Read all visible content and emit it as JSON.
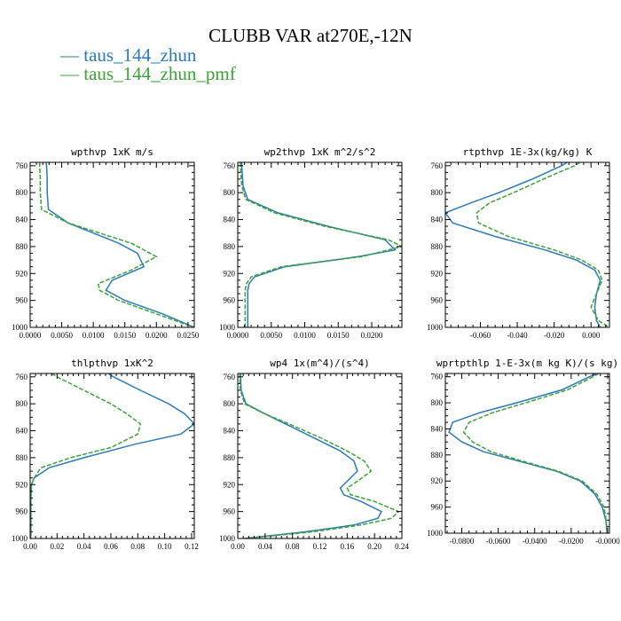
{
  "title": "CLUBB VAR at270E,-12N",
  "legend": [
    {
      "name": "taus_144_zhun",
      "color": "#2a7ab9"
    },
    {
      "name": "taus_144_zhun_pmf",
      "color": "#3aa335"
    }
  ],
  "chart_data": [
    {
      "type": "line",
      "title": "wpthvp  1xK m/s",
      "xlim": [
        0,
        0.026
      ],
      "ylim": [
        1000,
        755
      ],
      "xticks": [
        0,
        0.005,
        0.01,
        0.015,
        0.02,
        0.025
      ],
      "xtick_labels": [
        "0.0000",
        "0.0050",
        "0.0100",
        "0.0150",
        "0.0200",
        "0.0250"
      ],
      "yticks": [
        760,
        800,
        840,
        880,
        920,
        960,
        1000
      ],
      "ytick_labels": [
        "760",
        "800",
        "840",
        "880",
        "920",
        "960",
        "1000"
      ],
      "series": [
        {
          "name": "taus_144_zhun",
          "style": "solid",
          "p": [
            755,
            760,
            780,
            800,
            825,
            845,
            860,
            875,
            890,
            910,
            930,
            945,
            960,
            980,
            1000
          ],
          "x": [
            0.0025,
            0.0026,
            0.0027,
            0.0027,
            0.0029,
            0.006,
            0.01,
            0.014,
            0.017,
            0.018,
            0.013,
            0.012,
            0.015,
            0.021,
            0.026
          ]
        },
        {
          "name": "taus_144_zhun_pmf",
          "style": "dashed",
          "p": [
            755,
            760,
            780,
            800,
            825,
            845,
            860,
            875,
            895,
            915,
            935,
            945,
            960,
            980,
            1000
          ],
          "x": [
            0.0015,
            0.0015,
            0.0016,
            0.0016,
            0.0018,
            0.006,
            0.011,
            0.016,
            0.02,
            0.016,
            0.0108,
            0.011,
            0.014,
            0.02,
            0.026
          ]
        }
      ]
    },
    {
      "type": "line",
      "title": "wp2thvp  1xK m^2/s^2",
      "xlim": [
        0,
        0.0245
      ],
      "ylim": [
        1000,
        755
      ],
      "xticks": [
        0,
        0.005,
        0.01,
        0.015,
        0.02
      ],
      "xtick_labels": [
        "0.0000",
        "0.0050",
        "0.0100",
        "0.0150",
        "0.0200"
      ],
      "yticks": [
        760,
        800,
        840,
        880,
        920,
        960,
        1000
      ],
      "ytick_labels": [
        "760",
        "800",
        "840",
        "880",
        "920",
        "960",
        "1000"
      ],
      "series": [
        {
          "name": "taus_144_zhun",
          "style": "solid",
          "p": [
            755,
            760,
            790,
            810,
            830,
            850,
            870,
            885,
            895,
            910,
            925,
            935,
            945,
            960,
            980,
            1000
          ],
          "x": [
            0.0006,
            0.0006,
            0.0008,
            0.0015,
            0.006,
            0.0135,
            0.022,
            0.0235,
            0.018,
            0.007,
            0.0025,
            0.0017,
            0.0015,
            0.0015,
            0.0015,
            0.0015
          ]
        },
        {
          "name": "taus_144_zhun_pmf",
          "style": "dashed",
          "p": [
            755,
            760,
            790,
            810,
            830,
            850,
            870,
            880,
            895,
            910,
            925,
            935,
            945,
            960,
            980,
            1000
          ],
          "x": [
            0.0004,
            0.0004,
            0.0006,
            0.0012,
            0.0055,
            0.013,
            0.0225,
            0.0245,
            0.0185,
            0.0065,
            0.002,
            0.0013,
            0.0011,
            0.0011,
            0.0011,
            0.0011
          ]
        }
      ]
    },
    {
      "type": "line",
      "title": "rtpthvp  1E-3x(kg/kg) K",
      "xlim": [
        -0.079,
        0.01
      ],
      "ylim": [
        1000,
        755
      ],
      "xticks": [
        -0.06,
        -0.04,
        -0.02,
        0
      ],
      "xtick_labels": [
        "-0.060",
        "-0.040",
        "-0.020",
        "0.000"
      ],
      "yticks": [
        760,
        800,
        840,
        880,
        920,
        960,
        1000
      ],
      "ytick_labels": [
        "760",
        "800",
        "840",
        "880",
        "920",
        "960",
        "1000"
      ],
      "series": [
        {
          "name": "taus_144_zhun",
          "style": "solid",
          "p": [
            755,
            760,
            780,
            800,
            815,
            830,
            845,
            865,
            885,
            900,
            915,
            930,
            950,
            970,
            990,
            1000
          ],
          "x": [
            -0.013,
            -0.016,
            -0.032,
            -0.05,
            -0.065,
            -0.079,
            -0.075,
            -0.052,
            -0.025,
            -0.008,
            0.002,
            0.005,
            0.003,
            0.002,
            0.003,
            0.005
          ]
        },
        {
          "name": "taus_144_zhun_pmf",
          "style": "dashed",
          "p": [
            755,
            760,
            780,
            800,
            815,
            830,
            845,
            865,
            885,
            900,
            915,
            930,
            950,
            970,
            990,
            1000
          ],
          "x": [
            -0.006,
            -0.009,
            -0.026,
            -0.042,
            -0.055,
            -0.062,
            -0.061,
            -0.045,
            -0.02,
            -0.005,
            0.004,
            0.006,
            0.003,
            0.0,
            0.004,
            0.01
          ]
        }
      ]
    },
    {
      "type": "line",
      "title": "thlpthvp  1xK^2",
      "xlim": [
        0,
        0.122
      ],
      "ylim": [
        1000,
        755
      ],
      "xticks": [
        0,
        0.02,
        0.04,
        0.06,
        0.08,
        0.1,
        0.12
      ],
      "xtick_labels": [
        "0.00",
        "0.02",
        "0.04",
        "0.06",
        "0.08",
        "0.10",
        "0.12"
      ],
      "yticks": [
        760,
        800,
        840,
        880,
        920,
        960,
        1000
      ],
      "ytick_labels": [
        "760",
        "800",
        "840",
        "880",
        "920",
        "960",
        "1000"
      ],
      "series": [
        {
          "name": "taus_144_zhun",
          "style": "solid",
          "p": [
            755,
            760,
            780,
            800,
            815,
            830,
            845,
            860,
            880,
            895,
            910,
            920,
            940,
            960,
            980,
            1000
          ],
          "x": [
            0.058,
            0.062,
            0.082,
            0.103,
            0.115,
            0.122,
            0.112,
            0.078,
            0.04,
            0.014,
            0.003,
            0.001,
            0.0005,
            0.0005,
            0.0005,
            0.0005
          ]
        },
        {
          "name": "taus_144_zhun_pmf",
          "style": "dashed",
          "p": [
            755,
            760,
            780,
            800,
            815,
            830,
            845,
            865,
            880,
            895,
            910,
            920,
            940,
            960,
            980,
            1000
          ],
          "x": [
            0.016,
            0.02,
            0.04,
            0.06,
            0.072,
            0.082,
            0.08,
            0.06,
            0.03,
            0.008,
            0.003,
            0.001,
            0.0003,
            0.0003,
            0.0003,
            0.0003
          ]
        }
      ]
    },
    {
      "type": "line",
      "title": "wp4  1x(m^4)/(s^4)",
      "xlim": [
        0,
        0.24
      ],
      "ylim": [
        1000,
        755
      ],
      "xticks": [
        0,
        0.04,
        0.08,
        0.12,
        0.16,
        0.2,
        0.24
      ],
      "xtick_labels": [
        "0.00",
        "0.04",
        "0.08",
        "0.12",
        "0.16",
        "0.20",
        "0.24"
      ],
      "yticks": [
        760,
        800,
        840,
        880,
        920,
        960,
        1000
      ],
      "ytick_labels": [
        "760",
        "800",
        "840",
        "880",
        "920",
        "960",
        "1000"
      ],
      "series": [
        {
          "name": "taus_144_zhun",
          "style": "solid",
          "p": [
            755,
            760,
            780,
            800,
            815,
            830,
            850,
            870,
            885,
            900,
            915,
            925,
            935,
            945,
            960,
            970,
            980,
            990,
            1000
          ],
          "x": [
            0.004,
            0.004,
            0.005,
            0.012,
            0.04,
            0.07,
            0.11,
            0.15,
            0.17,
            0.175,
            0.16,
            0.15,
            0.155,
            0.18,
            0.21,
            0.205,
            0.17,
            0.1,
            0.01
          ]
        },
        {
          "name": "taus_144_zhun_pmf",
          "style": "dashed",
          "p": [
            755,
            760,
            780,
            800,
            815,
            830,
            850,
            870,
            885,
            900,
            915,
            925,
            935,
            945,
            960,
            970,
            980,
            990,
            1000
          ],
          "x": [
            0.003,
            0.003,
            0.004,
            0.01,
            0.04,
            0.075,
            0.12,
            0.16,
            0.185,
            0.195,
            0.175,
            0.16,
            0.165,
            0.2,
            0.235,
            0.225,
            0.18,
            0.11,
            0.01
          ]
        }
      ]
    },
    {
      "type": "line",
      "title": "wprtpthlp  1-E-3x(m kg K)/(s kg)",
      "xlim": [
        -0.089,
        0.001
      ],
      "ylim": [
        1000,
        755
      ],
      "xticks": [
        -0.08,
        -0.06,
        -0.04,
        -0.02,
        0
      ],
      "xtick_labels": [
        "-0.0800",
        "-0.0600",
        "-0.0400",
        "-0.0200",
        "-0.0000"
      ],
      "yticks": [
        760,
        800,
        840,
        880,
        920,
        960,
        1000
      ],
      "ytick_labels": [
        "760",
        "800",
        "840",
        "880",
        "920",
        "960",
        "1000"
      ],
      "series": [
        {
          "name": "taus_144_zhun",
          "style": "solid",
          "p": [
            755,
            760,
            780,
            800,
            815,
            830,
            845,
            860,
            875,
            890,
            905,
            920,
            940,
            960,
            980,
            1000
          ],
          "x": [
            -0.006,
            -0.01,
            -0.025,
            -0.05,
            -0.07,
            -0.085,
            -0.087,
            -0.08,
            -0.068,
            -0.048,
            -0.028,
            -0.015,
            -0.007,
            -0.003,
            -0.001,
            -0.0003
          ]
        },
        {
          "name": "taus_144_zhun_pmf",
          "style": "dashed",
          "p": [
            755,
            760,
            780,
            800,
            815,
            830,
            845,
            860,
            875,
            890,
            905,
            920,
            940,
            960,
            980,
            1000
          ],
          "x": [
            -0.005,
            -0.008,
            -0.022,
            -0.045,
            -0.063,
            -0.076,
            -0.079,
            -0.074,
            -0.064,
            -0.046,
            -0.027,
            -0.014,
            -0.006,
            -0.002,
            -0.0008,
            -0.0002
          ]
        }
      ]
    }
  ]
}
